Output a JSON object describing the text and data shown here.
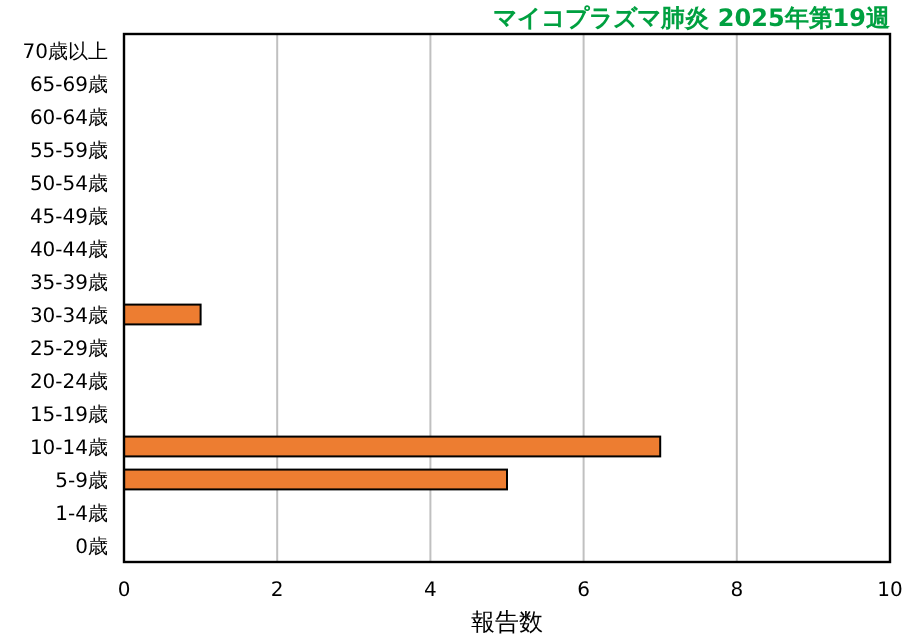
{
  "chart_data": {
    "type": "bar",
    "orientation": "horizontal",
    "title": "マイコプラズマ肺炎 2025年第19週",
    "categories": [
      "70歳以上",
      "65-69歳",
      "60-64歳",
      "55-59歳",
      "50-54歳",
      "45-49歳",
      "40-44歳",
      "35-39歳",
      "30-34歳",
      "25-29歳",
      "20-24歳",
      "15-19歳",
      "10-14歳",
      "5-9歳",
      "1-4歳",
      "0歳"
    ],
    "values": [
      0,
      0,
      0,
      0,
      0,
      0,
      0,
      0,
      1,
      0,
      0,
      0,
      7,
      5,
      0,
      0
    ],
    "color": "#ed7d31",
    "xlim": [
      0,
      10
    ],
    "xticks": [
      0,
      2,
      4,
      6,
      8,
      10
    ],
    "xlabel": "報告数",
    "grid": "x"
  }
}
